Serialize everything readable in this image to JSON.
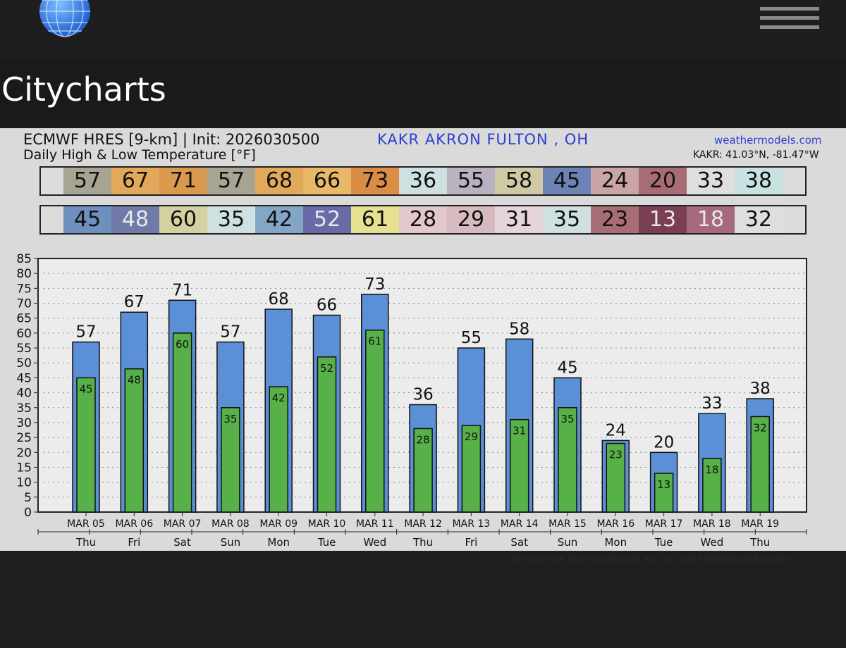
{
  "app": {
    "page_title": "Citycharts"
  },
  "header": {
    "model_line": "ECMWF HRES [9-km] | Init: 2026030500",
    "location": "KAKR AKRON  FULTON  , OH",
    "site": "weathermodels.com",
    "subtitle": "Daily High & Low Temperature [°F]",
    "coords": "KAKR: 41.03°N, -81.47°W"
  },
  "footer": {
    "tos": "Personal use only according to our TOS (pf16785Q0UKAKR1q786)"
  },
  "colors": {
    "high_bar": "#5b8fd6",
    "low_bar": "#58b048",
    "high_strip": [
      "#a7a492",
      "#e2a95b",
      "#da9a4e",
      "#a7a492",
      "#e2a95b",
      "#e8b867",
      "#db8d45",
      "#cfe0e0",
      "#b9b1bf",
      "#cfc9a4",
      "#6c83b5",
      "#c9a5a6",
      "#a86c74",
      "#dedede",
      "#c8e2e2"
    ],
    "low_strip": [
      "#6f8fbd",
      "#6f7aa8",
      "#d3d1a0",
      "#cfe0e0",
      "#84a6c6",
      "#6a6aa8",
      "#e5e190",
      "#e2c7cb",
      "#d7babf",
      "#e5d5d8",
      "#cfe0e0",
      "#a86c74",
      "#7a3f55",
      "#a66a7c",
      "#dedede"
    ]
  },
  "chart_data": {
    "type": "bar",
    "title": "Daily High & Low Temperature [°F]",
    "categories": [
      "MAR 05",
      "MAR 06",
      "MAR 07",
      "MAR 08",
      "MAR 09",
      "MAR 10",
      "MAR 11",
      "MAR 12",
      "MAR 13",
      "MAR 14",
      "MAR 15",
      "MAR 16",
      "MAR 17",
      "MAR 18",
      "MAR 19"
    ],
    "weekdays": [
      "Thu",
      "Fri",
      "Sat",
      "Sun",
      "Mon",
      "Tue",
      "Wed",
      "Thu",
      "Fri",
      "Sat",
      "Sun",
      "Mon",
      "Tue",
      "Wed",
      "Thu"
    ],
    "series": [
      {
        "name": "High",
        "values": [
          57,
          67,
          71,
          57,
          68,
          66,
          73,
          36,
          55,
          58,
          45,
          24,
          20,
          33,
          38
        ]
      },
      {
        "name": "Low",
        "values": [
          45,
          48,
          60,
          35,
          42,
          52,
          61,
          28,
          29,
          31,
          35,
          23,
          13,
          18,
          32
        ]
      }
    ],
    "ylim": [
      0,
      85
    ],
    "yticks": [
      0,
      5,
      10,
      15,
      20,
      25,
      30,
      35,
      40,
      45,
      50,
      55,
      60,
      65,
      70,
      75,
      80,
      85
    ],
    "grid": true
  }
}
